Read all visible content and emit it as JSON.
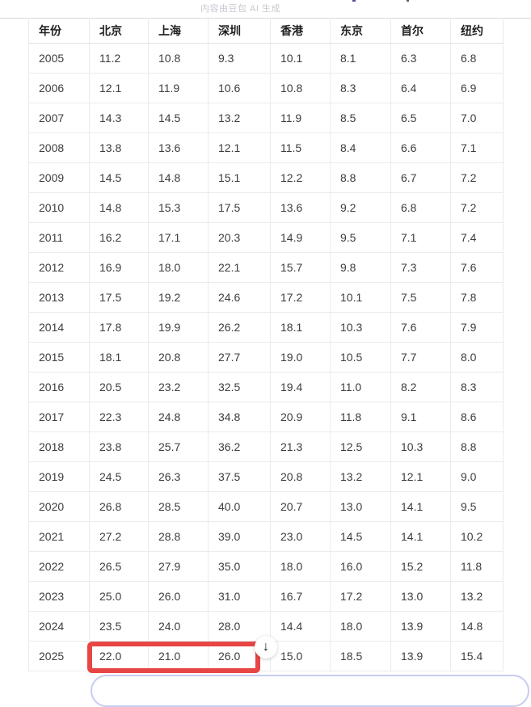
{
  "page": {
    "watermark": "内容由豆包 AI 生成"
  },
  "table": {
    "columns": [
      "年份",
      "北京",
      "上海",
      "深圳",
      "香港",
      "东京",
      "首尔",
      "纽约"
    ],
    "rows": [
      [
        "2005",
        "11.2",
        "10.8",
        "9.3",
        "10.1",
        "8.1",
        "6.3",
        "6.8"
      ],
      [
        "2006",
        "12.1",
        "11.9",
        "10.6",
        "10.8",
        "8.3",
        "6.4",
        "6.9"
      ],
      [
        "2007",
        "14.3",
        "14.5",
        "13.2",
        "11.9",
        "8.5",
        "6.5",
        "7.0"
      ],
      [
        "2008",
        "13.8",
        "13.6",
        "12.1",
        "11.5",
        "8.4",
        "6.6",
        "7.1"
      ],
      [
        "2009",
        "14.5",
        "14.8",
        "15.1",
        "12.2",
        "8.8",
        "6.7",
        "7.2"
      ],
      [
        "2010",
        "14.8",
        "15.3",
        "17.5",
        "13.6",
        "9.2",
        "6.8",
        "7.2"
      ],
      [
        "2011",
        "16.2",
        "17.1",
        "20.3",
        "14.9",
        "9.5",
        "7.1",
        "7.4"
      ],
      [
        "2012",
        "16.9",
        "18.0",
        "22.1",
        "15.7",
        "9.8",
        "7.3",
        "7.6"
      ],
      [
        "2013",
        "17.5",
        "19.2",
        "24.6",
        "17.2",
        "10.1",
        "7.5",
        "7.8"
      ],
      [
        "2014",
        "17.8",
        "19.9",
        "26.2",
        "18.1",
        "10.3",
        "7.6",
        "7.9"
      ],
      [
        "2015",
        "18.1",
        "20.8",
        "27.7",
        "19.0",
        "10.5",
        "7.7",
        "8.0"
      ],
      [
        "2016",
        "20.5",
        "23.2",
        "32.5",
        "19.4",
        "11.0",
        "8.2",
        "8.3"
      ],
      [
        "2017",
        "22.3",
        "24.8",
        "34.8",
        "20.9",
        "11.8",
        "9.1",
        "8.6"
      ],
      [
        "2018",
        "23.8",
        "25.7",
        "36.2",
        "21.3",
        "12.5",
        "10.3",
        "8.8"
      ],
      [
        "2019",
        "24.5",
        "26.3",
        "37.5",
        "20.8",
        "13.2",
        "12.1",
        "9.0"
      ],
      [
        "2020",
        "26.8",
        "28.5",
        "40.0",
        "20.7",
        "13.0",
        "14.1",
        "9.5"
      ],
      [
        "2021",
        "27.2",
        "28.8",
        "39.0",
        "23.0",
        "14.5",
        "14.1",
        "10.2"
      ],
      [
        "2022",
        "26.5",
        "27.9",
        "35.0",
        "18.0",
        "16.0",
        "15.2",
        "11.8"
      ],
      [
        "2023",
        "25.0",
        "26.0",
        "31.0",
        "16.7",
        "17.2",
        "13.0",
        "13.2"
      ],
      [
        "2024",
        "23.5",
        "24.0",
        "28.0",
        "14.4",
        "18.0",
        "13.9",
        "14.8"
      ],
      [
        "2025",
        "22.0",
        "21.0",
        "26.0",
        "15.0",
        "18.5",
        "13.9",
        "15.4"
      ]
    ]
  },
  "annotations": {
    "highlight_box": {
      "highlighted_year": "2025",
      "highlighted_columns": [
        "北京",
        "上海",
        "深圳"
      ],
      "highlighted_values": [
        "22.0",
        "21.0",
        "26.0"
      ],
      "color": "#e84545"
    },
    "cursor": {
      "glyph": "↓"
    }
  },
  "colors": {
    "highlight_red": "#e84545",
    "table_border": "#ebebeb",
    "top_rule": "#d9d9d9",
    "body_text": "#3d3d3d",
    "header_text": "#1f1f1f",
    "watermark_text": "#c6c9cf",
    "bottom_panel_border": "#c7ccf0"
  }
}
